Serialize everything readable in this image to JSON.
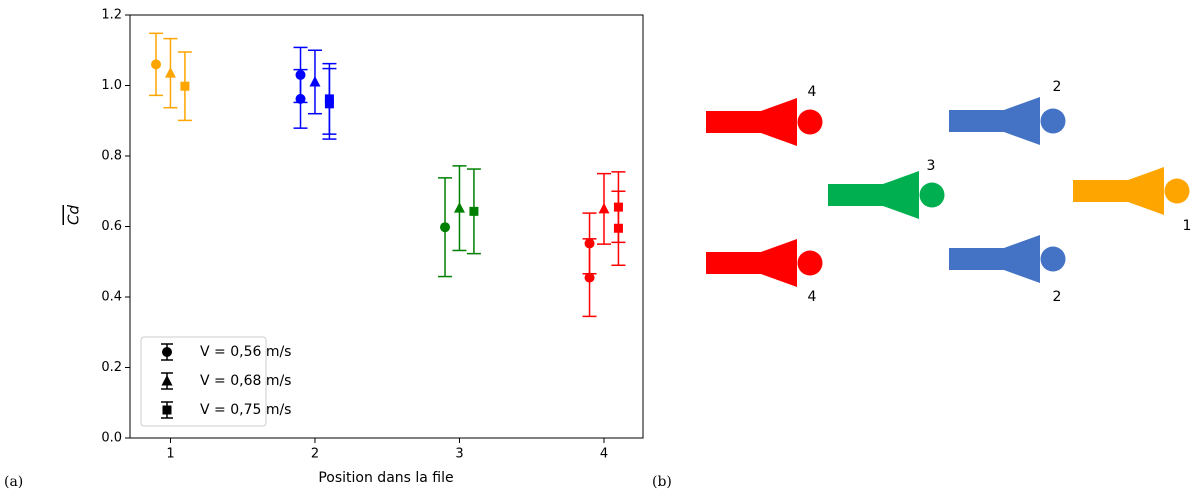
{
  "chart_data": {
    "type": "errorbar",
    "xlabel": "Position dans la file",
    "ylabel": "Cd",
    "xlim": [
      0.72,
      4.27
    ],
    "ylim": [
      0,
      1.2
    ],
    "xticks": [
      1,
      2,
      3,
      4
    ],
    "yticks": [
      {
        "value": 0,
        "label": "0.0"
      },
      {
        "value": 0.2,
        "label": "0.2"
      },
      {
        "value": 0.4,
        "label": "0.4"
      },
      {
        "value": 0.6,
        "label": "0.6"
      },
      {
        "value": 0.8,
        "label": "0.8"
      },
      {
        "value": 1,
        "label": "1.0"
      },
      {
        "value": 1.2,
        "label": "1.2"
      }
    ],
    "legend": "lower left",
    "series": [
      {
        "name": "V = 0,56 m/s",
        "marker": "circle",
        "x": [
          0.9,
          1.9,
          1.9,
          2.9,
          3.9,
          3.9
        ],
        "values": [
          1.06,
          1.03,
          0.962,
          0.598,
          0.552,
          0.455
        ],
        "errors": [
          0.088,
          0.078,
          0.083,
          0.14,
          0.086,
          0.11
        ],
        "colors": [
          "#ffa500",
          "#0000ff",
          "#0000ff",
          "#008000",
          "#ff0000",
          "#ff0000"
        ]
      },
      {
        "name": "V = 0,68 m/s",
        "marker": "triangle",
        "x": [
          1,
          2,
          3,
          4
        ],
        "values": [
          1.035,
          1.01,
          0.652,
          0.65
        ],
        "errors": [
          0.098,
          0.09,
          0.12,
          0.1
        ],
        "colors": [
          "#ffa500",
          "#0000ff",
          "#008000",
          "#ff0000"
        ]
      },
      {
        "name": "V = 0,75 m/s",
        "marker": "square",
        "x": [
          1.1,
          2.1,
          2.1,
          3.1,
          4.1,
          4.1
        ],
        "values": [
          0.998,
          0.962,
          0.948,
          0.643,
          0.655,
          0.595
        ],
        "errors": [
          0.097,
          0.1,
          0.1,
          0.12,
          0.1,
          0.105
        ],
        "colors": [
          "#ffa500",
          "#0000ff",
          "#0000ff",
          "#008000",
          "#ff0000",
          "#ff0000"
        ]
      }
    ]
  },
  "panel_labels": [
    "(a)",
    "(b)"
  ],
  "diagram": {
    "labels": [
      "4",
      "2",
      "3",
      "1",
      "4",
      "2"
    ]
  }
}
